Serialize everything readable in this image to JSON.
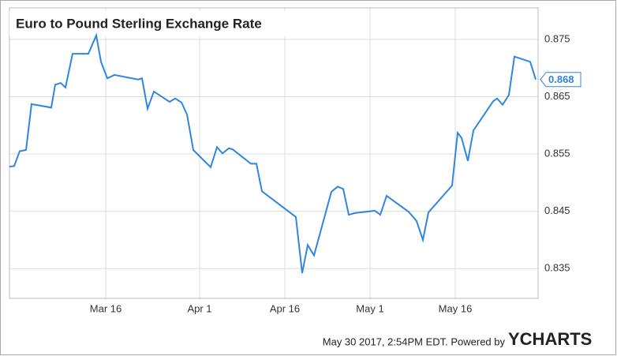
{
  "chart_data": {
    "type": "line",
    "title": "Euro to Pound Sterling Exchange Rate",
    "footer": "May 30 2017, 2:54PM EDT.  Powered by",
    "brand": "YCHARTS",
    "x": [
      0,
      6,
      13,
      21,
      28,
      53,
      58,
      65,
      71,
      80,
      100,
      110,
      116,
      124,
      133,
      163,
      168,
      175,
      183,
      203,
      210,
      218,
      225,
      233,
      255,
      263,
      270,
      278,
      283,
      306,
      313,
      320,
      363,
      371,
      378,
      386,
      408,
      416,
      423,
      430,
      438,
      463,
      470,
      478,
      506,
      516,
      524,
      531,
      561,
      568,
      573,
      581,
      588,
      613,
      618,
      625,
      633,
      640,
      660,
      667
    ],
    "series": [
      {
        "name": "Euro to Pound Sterling",
        "color": "#2f86de",
        "values": [
          0.8528,
          0.8529,
          0.8555,
          0.8557,
          0.8637,
          0.8631,
          0.8671,
          0.8674,
          0.8666,
          0.8725,
          0.8725,
          0.8757,
          0.8711,
          0.8682,
          0.8688,
          0.868,
          0.8682,
          0.8629,
          0.8659,
          0.8641,
          0.8647,
          0.864,
          0.8619,
          0.8557,
          0.8527,
          0.8562,
          0.8551,
          0.856,
          0.8558,
          0.8533,
          0.8533,
          0.8485,
          0.844,
          0.8342,
          0.8391,
          0.8373,
          0.8484,
          0.8493,
          0.8489,
          0.8444,
          0.8447,
          0.8451,
          0.8444,
          0.8477,
          0.8449,
          0.8433,
          0.84,
          0.8448,
          0.8495,
          0.8587,
          0.8578,
          0.8538,
          0.8591,
          0.8642,
          0.8647,
          0.8636,
          0.8653,
          0.872,
          0.8711,
          0.868
        ],
        "value_labels": [
          null,
          null,
          null,
          null,
          null,
          null,
          null,
          null,
          null,
          null,
          null,
          null,
          null,
          null,
          null,
          null,
          null,
          null,
          null,
          null,
          null,
          null,
          null,
          null,
          null,
          null,
          null,
          null,
          null,
          null,
          null,
          null,
          null,
          null,
          null,
          null,
          null,
          null,
          null,
          null,
          null,
          null,
          null,
          null,
          null,
          null,
          null,
          null,
          null,
          null,
          null,
          null,
          null,
          null,
          null,
          null,
          null,
          null,
          null,
          "0.868"
        ]
      }
    ],
    "xlim": [
      0,
      670
    ],
    "xticks": [
      {
        "value": 122,
        "label": "Mar 16"
      },
      {
        "value": 241,
        "label": "Apr 1"
      },
      {
        "value": 349,
        "label": "Apr 16"
      },
      {
        "value": 457,
        "label": "May 1"
      },
      {
        "value": 565,
        "label": "May 16"
      }
    ],
    "ylim": [
      0.8298,
      0.8805
    ],
    "yticks": [
      0.835,
      0.845,
      0.855,
      0.865,
      0.875
    ],
    "grid": true
  }
}
